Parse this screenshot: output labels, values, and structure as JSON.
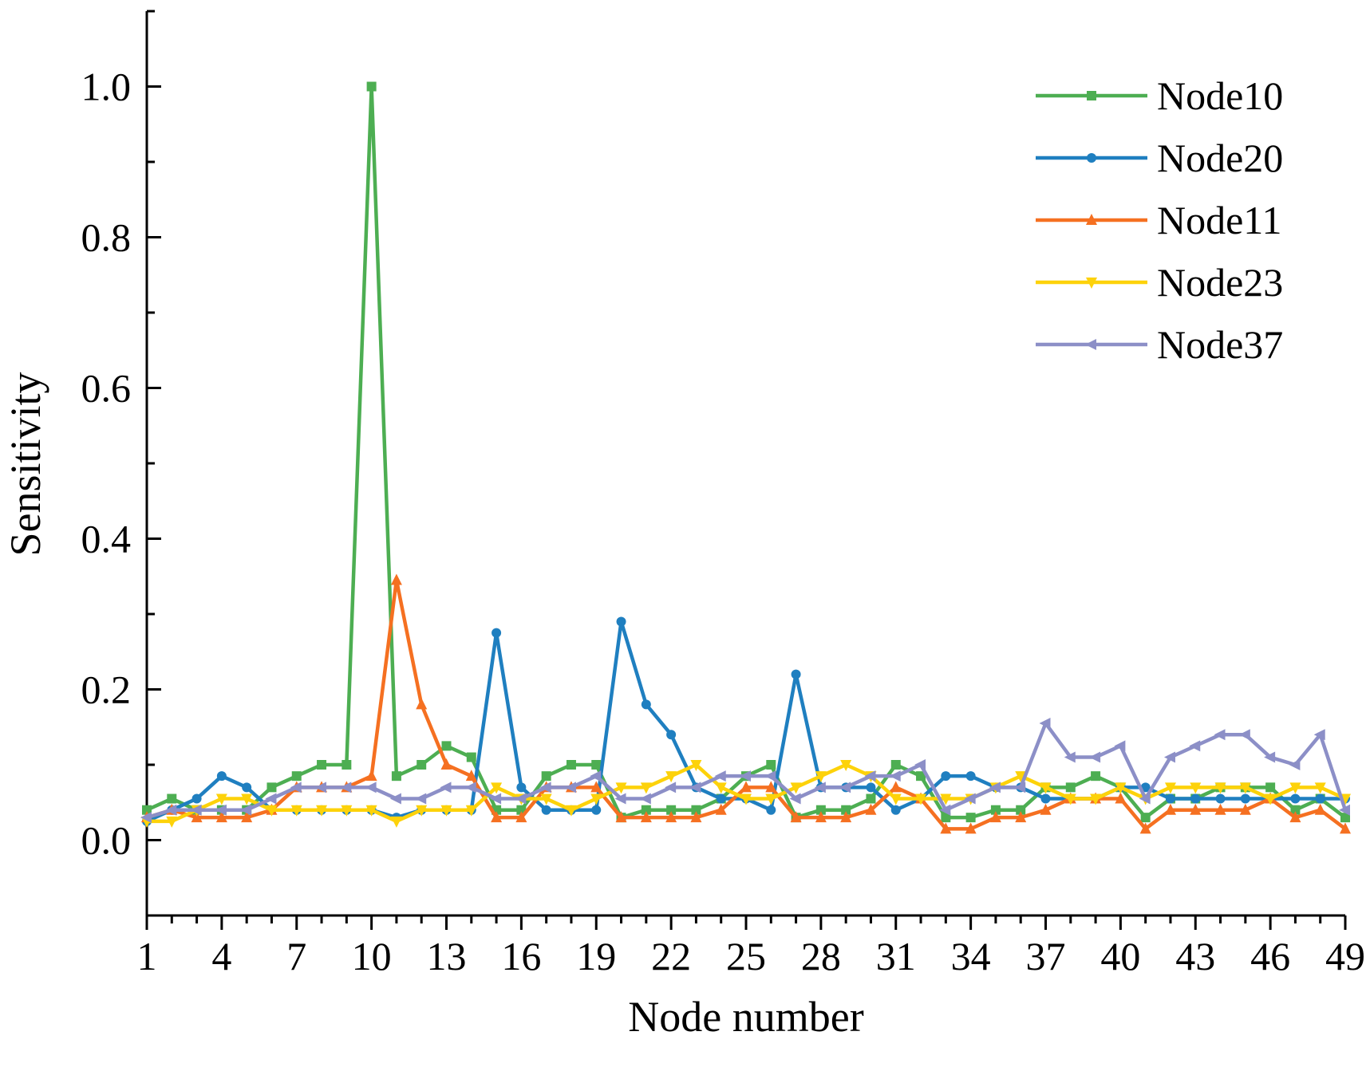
{
  "chart_data": {
    "type": "line",
    "xlabel": "Node number",
    "ylabel": "Sensitivity",
    "x": [
      1,
      2,
      3,
      4,
      5,
      6,
      7,
      8,
      9,
      10,
      11,
      12,
      13,
      14,
      15,
      16,
      17,
      18,
      19,
      20,
      21,
      22,
      23,
      24,
      25,
      26,
      27,
      28,
      29,
      30,
      31,
      32,
      33,
      34,
      35,
      36,
      37,
      38,
      39,
      40,
      41,
      42,
      43,
      44,
      45,
      46,
      47,
      48,
      49
    ],
    "xlim": [
      1,
      49
    ],
    "ylim": [
      -0.1,
      1.1
    ],
    "xticks": [
      1,
      4,
      7,
      10,
      13,
      16,
      19,
      22,
      25,
      28,
      31,
      34,
      37,
      40,
      43,
      46,
      49
    ],
    "xtick_labels": [
      "1",
      "4",
      "7",
      "10",
      "13",
      "16",
      "19",
      "22",
      "25",
      "28",
      "31",
      "34",
      "37",
      "40",
      "43",
      "46",
      "49"
    ],
    "yticks": [
      0.0,
      0.2,
      0.4,
      0.6,
      0.8,
      1.0
    ],
    "ytick_labels": [
      "0.0",
      "0.2",
      "0.4",
      "0.6",
      "0.8",
      "1.0"
    ],
    "legend_position": "top-right",
    "series": [
      {
        "name": "Node10",
        "color": "#4dae52",
        "marker": "square",
        "values": [
          0.04,
          0.055,
          0.04,
          0.04,
          0.04,
          0.07,
          0.085,
          0.1,
          0.1,
          1.0,
          0.085,
          0.1,
          0.125,
          0.11,
          0.04,
          0.04,
          0.085,
          0.1,
          0.1,
          0.03,
          0.04,
          0.04,
          0.04,
          0.055,
          0.085,
          0.1,
          0.03,
          0.04,
          0.04,
          0.055,
          0.1,
          0.085,
          0.03,
          0.03,
          0.04,
          0.04,
          0.07,
          0.07,
          0.085,
          0.07,
          0.03,
          0.055,
          0.055,
          0.07,
          0.07,
          0.07,
          0.04,
          0.055,
          0.03
        ]
      },
      {
        "name": "Node20",
        "color": "#1f7fc0",
        "marker": "circle",
        "values": [
          0.025,
          0.04,
          0.055,
          0.085,
          0.07,
          0.04,
          0.04,
          0.04,
          0.04,
          0.04,
          0.03,
          0.04,
          0.04,
          0.04,
          0.275,
          0.07,
          0.04,
          0.04,
          0.04,
          0.29,
          0.18,
          0.14,
          0.07,
          0.055,
          0.055,
          0.04,
          0.22,
          0.07,
          0.07,
          0.07,
          0.04,
          0.055,
          0.085,
          0.085,
          0.07,
          0.07,
          0.055,
          0.055,
          0.055,
          0.07,
          0.07,
          0.055,
          0.055,
          0.055,
          0.055,
          0.055,
          0.055,
          0.055,
          0.055
        ]
      },
      {
        "name": "Node11",
        "color": "#f57021",
        "marker": "triangle-up",
        "values": [
          0.03,
          0.04,
          0.03,
          0.03,
          0.03,
          0.04,
          0.07,
          0.07,
          0.07,
          0.085,
          0.345,
          0.18,
          0.1,
          0.085,
          0.03,
          0.03,
          0.07,
          0.07,
          0.07,
          0.03,
          0.03,
          0.03,
          0.03,
          0.04,
          0.07,
          0.07,
          0.03,
          0.03,
          0.03,
          0.04,
          0.07,
          0.055,
          0.015,
          0.015,
          0.03,
          0.03,
          0.04,
          0.055,
          0.055,
          0.055,
          0.015,
          0.04,
          0.04,
          0.04,
          0.04,
          0.055,
          0.03,
          0.04,
          0.015
        ]
      },
      {
        "name": "Node23",
        "color": "#fdd20a",
        "marker": "triangle-down",
        "values": [
          0.025,
          0.025,
          0.04,
          0.055,
          0.055,
          0.04,
          0.04,
          0.04,
          0.04,
          0.04,
          0.025,
          0.04,
          0.04,
          0.04,
          0.07,
          0.055,
          0.055,
          0.04,
          0.055,
          0.07,
          0.07,
          0.085,
          0.1,
          0.07,
          0.055,
          0.055,
          0.07,
          0.085,
          0.1,
          0.085,
          0.055,
          0.055,
          0.055,
          0.055,
          0.07,
          0.085,
          0.07,
          0.055,
          0.055,
          0.07,
          0.055,
          0.07,
          0.07,
          0.07,
          0.07,
          0.055,
          0.07,
          0.07,
          0.055
        ]
      },
      {
        "name": "Node37",
        "color": "#8c8fc7",
        "marker": "triangle-left",
        "values": [
          0.03,
          0.04,
          0.04,
          0.04,
          0.04,
          0.055,
          0.07,
          0.07,
          0.07,
          0.07,
          0.055,
          0.055,
          0.07,
          0.07,
          0.055,
          0.055,
          0.07,
          0.07,
          0.085,
          0.055,
          0.055,
          0.07,
          0.07,
          0.085,
          0.085,
          0.085,
          0.055,
          0.07,
          0.07,
          0.085,
          0.085,
          0.1,
          0.04,
          0.055,
          0.07,
          0.07,
          0.155,
          0.11,
          0.11,
          0.125,
          0.055,
          0.11,
          0.125,
          0.14,
          0.14,
          0.11,
          0.1,
          0.14,
          0.04
        ]
      }
    ]
  }
}
